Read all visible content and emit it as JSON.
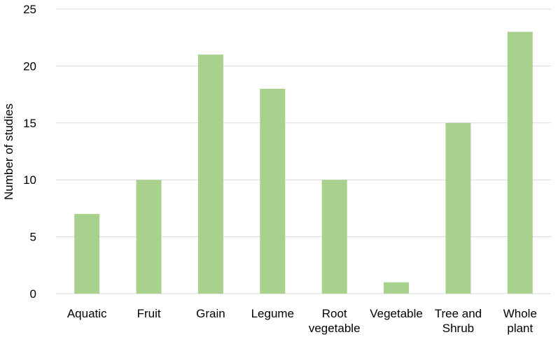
{
  "chart_data": {
    "type": "bar",
    "title": "",
    "xlabel": "",
    "ylabel": "Number of studies",
    "categories": [
      [
        "Aquatic"
      ],
      [
        "Fruit"
      ],
      [
        "Grain"
      ],
      [
        "Legume"
      ],
      [
        "Root",
        "vegetable"
      ],
      [
        "Vegetable"
      ],
      [
        "Tree and",
        "Shrub"
      ],
      [
        "Whole",
        "plant"
      ]
    ],
    "values": [
      7,
      10,
      21,
      18,
      10,
      1,
      15,
      23
    ],
    "ylim": [
      0,
      25
    ],
    "yticks": [
      "0",
      "5",
      "10",
      "15",
      "20",
      "25"
    ],
    "grid": true,
    "legend": "none",
    "bar_color": "#a9d18e"
  }
}
